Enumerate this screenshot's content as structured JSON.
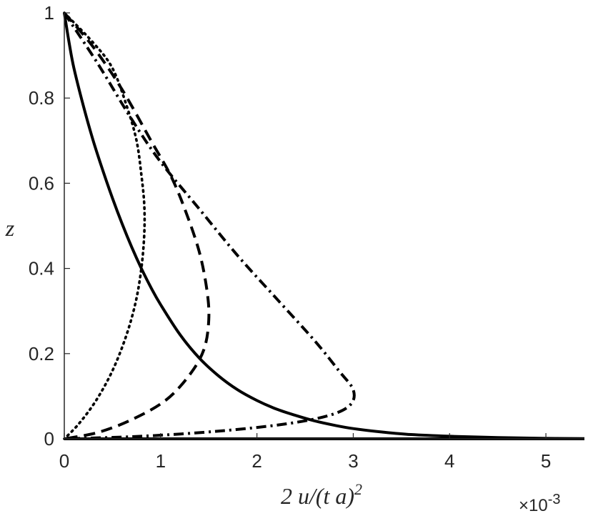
{
  "chart_data": {
    "type": "line",
    "title": "",
    "xlabel": "2 u/(t a)",
    "xlabel_superscript": "2",
    "ylabel": "z",
    "x_multiplier": "×10",
    "x_multiplier_exponent": "-3",
    "xlim": [
      0,
      5.4
    ],
    "ylim": [
      0,
      1
    ],
    "x_scale": 0.001,
    "xticks": [
      0,
      1,
      2,
      3,
      4,
      5
    ],
    "yticks": [
      0,
      0.2,
      0.4,
      0.6,
      0.8,
      1
    ],
    "xtick_labels": [
      "0",
      "1",
      "2",
      "3",
      "4",
      "5"
    ],
    "ytick_labels": [
      "0",
      "0.2",
      "0.4",
      "0.6",
      "0.8",
      "1"
    ],
    "grid": false,
    "legend": "none",
    "series": [
      {
        "style": "solid",
        "color": "#000000",
        "points": [
          [
            0,
            1
          ],
          [
            0.05,
            0.93
          ],
          [
            0.1,
            0.87
          ],
          [
            0.2,
            0.78
          ],
          [
            0.3,
            0.7
          ],
          [
            0.4,
            0.63
          ],
          [
            0.5,
            0.565
          ],
          [
            0.6,
            0.505
          ],
          [
            0.7,
            0.45
          ],
          [
            0.8,
            0.4
          ],
          [
            0.9,
            0.355
          ],
          [
            1.0,
            0.315
          ],
          [
            1.2,
            0.245
          ],
          [
            1.4,
            0.19
          ],
          [
            1.6,
            0.148
          ],
          [
            1.8,
            0.115
          ],
          [
            2.0,
            0.09
          ],
          [
            2.2,
            0.07
          ],
          [
            2.4,
            0.055
          ],
          [
            2.6,
            0.042
          ],
          [
            2.8,
            0.032
          ],
          [
            3.0,
            0.024
          ],
          [
            3.3,
            0.016
          ],
          [
            3.6,
            0.01
          ],
          [
            4.0,
            0.006
          ],
          [
            4.5,
            0.003
          ],
          [
            5.0,
            0.001
          ],
          [
            5.4,
            0.0004
          ]
        ]
      },
      {
        "style": "dotted",
        "color": "#000000",
        "points": [
          [
            0,
            1
          ],
          [
            0.3,
            0.93
          ],
          [
            0.5,
            0.87
          ],
          [
            0.65,
            0.78
          ],
          [
            0.75,
            0.7
          ],
          [
            0.8,
            0.62
          ],
          [
            0.83,
            0.55
          ],
          [
            0.83,
            0.48
          ],
          [
            0.8,
            0.4
          ],
          [
            0.74,
            0.32
          ],
          [
            0.64,
            0.24
          ],
          [
            0.5,
            0.16
          ],
          [
            0.33,
            0.09
          ],
          [
            0.15,
            0.035
          ],
          [
            0,
            0
          ]
        ]
      },
      {
        "style": "dashed",
        "color": "#000000",
        "points": [
          [
            0,
            1
          ],
          [
            0.3,
            0.92
          ],
          [
            0.6,
            0.82
          ],
          [
            0.9,
            0.7
          ],
          [
            1.1,
            0.62
          ],
          [
            1.25,
            0.54
          ],
          [
            1.4,
            0.44
          ],
          [
            1.48,
            0.35
          ],
          [
            1.5,
            0.28
          ],
          [
            1.45,
            0.21
          ],
          [
            1.3,
            0.15
          ],
          [
            1.05,
            0.09
          ],
          [
            0.7,
            0.045
          ],
          [
            0.35,
            0.015
          ],
          [
            0,
            0
          ]
        ]
      },
      {
        "style": "dashdot",
        "color": "#000000",
        "points": [
          [
            0,
            1
          ],
          [
            0.35,
            0.88
          ],
          [
            0.7,
            0.75
          ],
          [
            1.0,
            0.65
          ],
          [
            1.4,
            0.54
          ],
          [
            1.8,
            0.43
          ],
          [
            2.2,
            0.33
          ],
          [
            2.6,
            0.23
          ],
          [
            2.85,
            0.16
          ],
          [
            3.0,
            0.115
          ],
          [
            2.97,
            0.08
          ],
          [
            2.75,
            0.055
          ],
          [
            2.3,
            0.035
          ],
          [
            1.6,
            0.018
          ],
          [
            0.8,
            0.006
          ],
          [
            0,
            0
          ]
        ]
      }
    ]
  }
}
